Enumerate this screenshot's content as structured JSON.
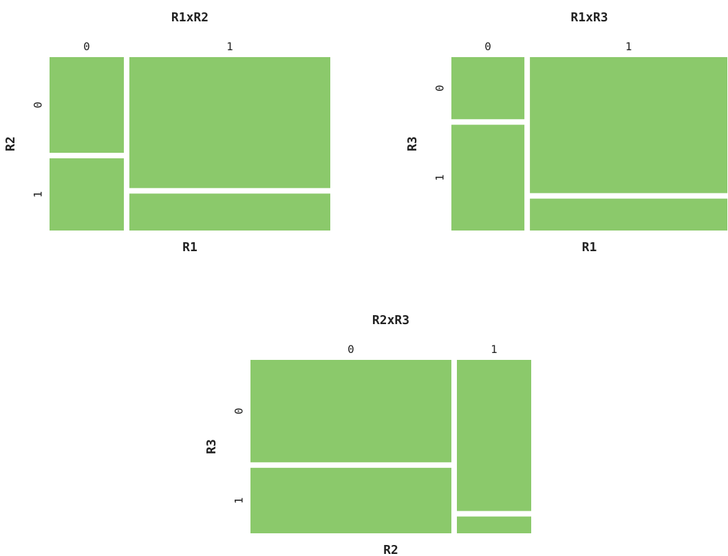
{
  "chart_data": [
    {
      "type": "mosaic",
      "title": "R1xR2",
      "xlabel": "R1",
      "ylabel": "R2",
      "x_categories": [
        "0",
        "1"
      ],
      "y_categories": [
        "0",
        "1"
      ],
      "column_shares": [
        0.27,
        0.73
      ],
      "cell_shares": [
        [
          0.57,
          0.43
        ],
        [
          0.78,
          0.22
        ]
      ],
      "color": "#8bc96b"
    },
    {
      "type": "mosaic",
      "title": "R1xR3",
      "xlabel": "R1",
      "ylabel": "R3",
      "x_categories": [
        "0",
        "1"
      ],
      "y_categories": [
        "0",
        "1"
      ],
      "column_shares": [
        0.27,
        0.73
      ],
      "cell_shares": [
        [
          0.37,
          0.63
        ],
        [
          0.81,
          0.19
        ]
      ],
      "color": "#8bc96b"
    },
    {
      "type": "mosaic",
      "title": "R2xR3",
      "xlabel": "R2",
      "ylabel": "R3",
      "x_categories": [
        "0",
        "1"
      ],
      "y_categories": [
        "0",
        "1"
      ],
      "column_shares": [
        0.73,
        0.27
      ],
      "cell_shares": [
        [
          0.61,
          0.39
        ],
        [
          0.9,
          0.1
        ]
      ],
      "color": "#8bc96b"
    }
  ]
}
